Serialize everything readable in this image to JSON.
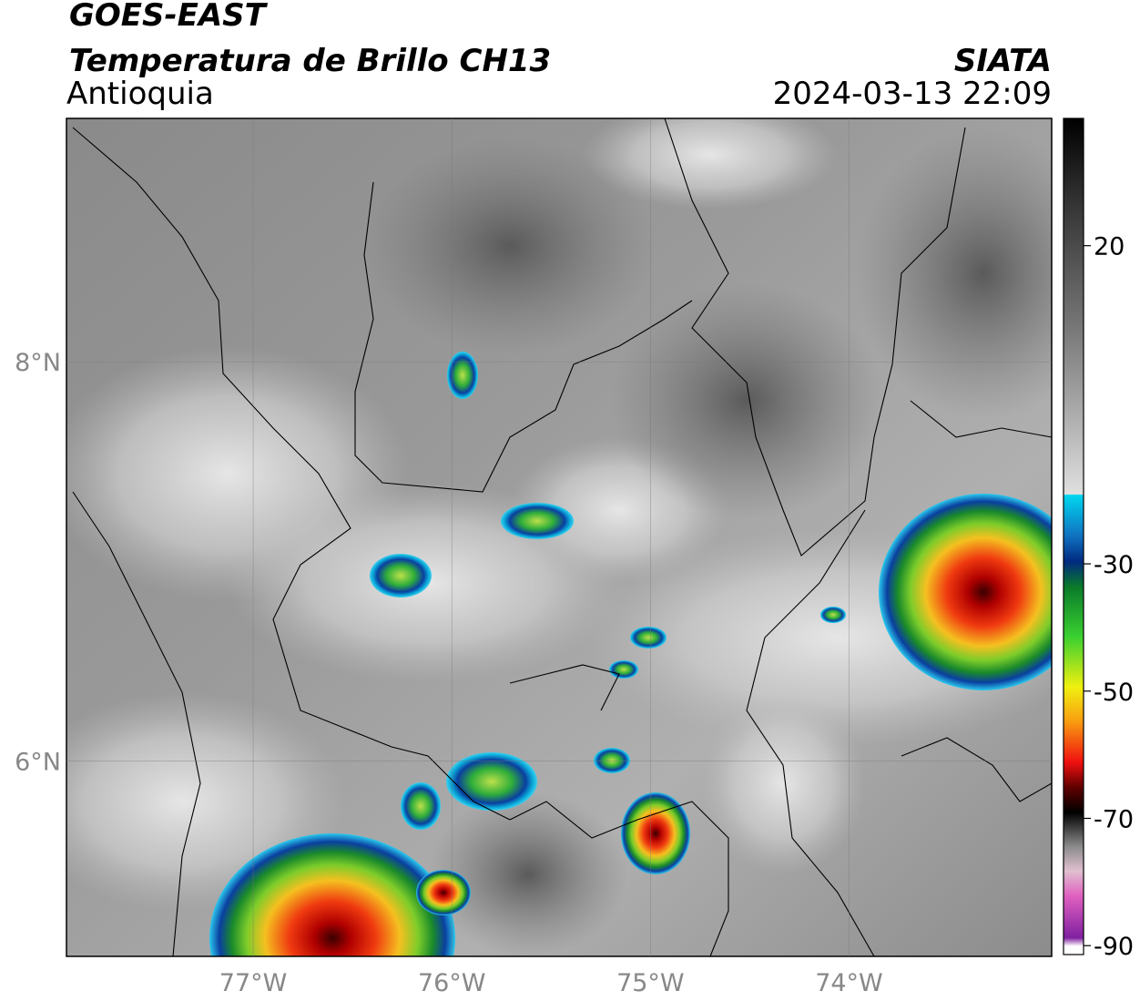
{
  "header": {
    "title": "GOES-EAST",
    "subtitle": "Temperatura de Brillo CH13",
    "region": "Antioquia",
    "source": "SIATA",
    "datetime": "2024-03-13 22:09"
  },
  "map": {
    "xlim": [
      -77.94,
      -72.98
    ],
    "ylim": [
      5.02,
      9.22
    ],
    "xticks": [
      {
        "value": -77,
        "label": "77°W"
      },
      {
        "value": -76,
        "label": "76°W"
      },
      {
        "value": -75,
        "label": "75°W"
      },
      {
        "value": -74,
        "label": "74°W"
      }
    ],
    "yticks": [
      {
        "value": 8,
        "label": "8°N"
      },
      {
        "value": 6,
        "label": "6°N"
      }
    ]
  },
  "colorbar": {
    "lim": [
      -91.4,
      40
    ],
    "ticks": [
      20,
      -30,
      -50,
      -70,
      -90
    ]
  }
}
